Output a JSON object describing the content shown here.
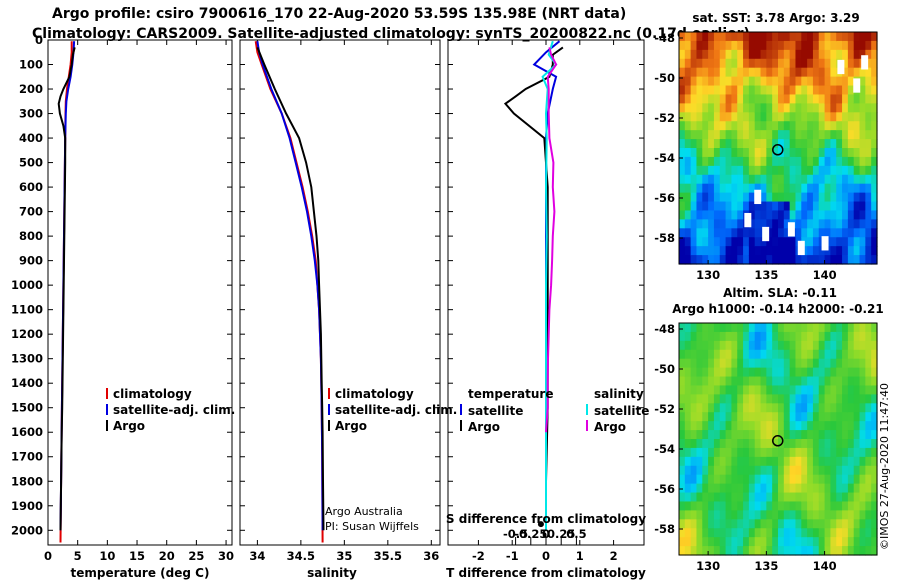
{
  "title": {
    "line1": "Argo profile: csiro 7900616_170 22-Aug-2020 53.59S 135.98E (NRT data)",
    "line2": "Climatology: CARS2009. Satellite-adjusted climatology: synTS_20200822.nc (0.17d earlier)"
  },
  "colors": {
    "climatology": "#e00000",
    "satellite": "#0000e0",
    "argo": "#000000",
    "salinity_satellite": "#00e8e8",
    "salinity_argo": "#e000e0"
  },
  "chart_data": [
    {
      "type": "line",
      "id": "temperature",
      "xlabel": "temperature (deg C)",
      "ylabel": "",
      "xlim": [
        0,
        31
      ],
      "ylim": [
        2060,
        0
      ],
      "xticks": [
        "0",
        "5",
        "10",
        "15",
        "20",
        "25",
        "30"
      ],
      "xtick_values": [
        0,
        5,
        10,
        15,
        20,
        25,
        30
      ],
      "yticks": [
        "0",
        "100",
        "200",
        "300",
        "400",
        "500",
        "600",
        "700",
        "800",
        "900",
        "1000",
        "1100",
        "1200",
        "1300",
        "1400",
        "1500",
        "1600",
        "1700",
        "1800",
        "1900",
        "2000"
      ],
      "ytick_values": [
        0,
        100,
        200,
        300,
        400,
        500,
        600,
        700,
        800,
        900,
        1000,
        1100,
        1200,
        1300,
        1400,
        1500,
        1600,
        1700,
        1800,
        1900,
        2000
      ],
      "legend": [
        "climatology",
        "satellite-adj. clim.",
        "Argo"
      ],
      "legend_position": "lower-right",
      "series": [
        {
          "name": "climatology",
          "color": "#e00000",
          "depth": [
            5,
            50,
            100,
            150,
            200,
            250,
            300,
            400,
            600,
            800,
            1000,
            1200,
            1500,
            1800,
            2050
          ],
          "values": [
            4.0,
            4.0,
            3.8,
            3.5,
            3.2,
            3.0,
            2.95,
            2.9,
            2.8,
            2.7,
            2.6,
            2.5,
            2.35,
            2.2,
            2.1
          ]
        },
        {
          "name": "satellite-adj. clim.",
          "color": "#0000e0",
          "depth": [
            5,
            50,
            100,
            150,
            200,
            250,
            300,
            400,
            600,
            800,
            1000,
            1200,
            1500,
            1800,
            2000
          ],
          "values": [
            4.4,
            4.3,
            4.1,
            3.8,
            3.4,
            3.1,
            3.0,
            2.9,
            2.8,
            2.7,
            2.6,
            2.5,
            2.35,
            2.2,
            2.1
          ]
        },
        {
          "name": "Argo",
          "color": "#000000",
          "depth": [
            30,
            60,
            100,
            150,
            200,
            230,
            260,
            300,
            350,
            400,
            500,
            600,
            700,
            800,
            900,
            1000,
            1100,
            1200,
            1300,
            1400,
            1500,
            1600,
            1700,
            1800,
            1900,
            2000
          ],
          "values": [
            4.5,
            4.2,
            4.0,
            3.6,
            2.6,
            2.1,
            1.8,
            2.0,
            2.6,
            2.9,
            2.9,
            2.85,
            2.8,
            2.75,
            2.7,
            2.65,
            2.6,
            2.55,
            2.5,
            2.45,
            2.4,
            2.3,
            2.25,
            2.2,
            2.15,
            2.1
          ]
        }
      ]
    },
    {
      "type": "line",
      "id": "salinity",
      "xlabel": "salinity",
      "xlim": [
        33.8,
        36.1
      ],
      "ylim": [
        2060,
        0
      ],
      "xticks": [
        "34",
        "34.5",
        "35",
        "35.5",
        "36"
      ],
      "xtick_values": [
        34,
        34.5,
        35,
        35.5,
        36
      ],
      "legend": [
        "climatology",
        "satellite-adj. clim.",
        "Argo"
      ],
      "legend_position": "lower-right",
      "annotations": [
        "Argo Australia",
        "PI: Susan Wijffels"
      ],
      "series": [
        {
          "name": "climatology",
          "color": "#e00000",
          "depth": [
            5,
            50,
            100,
            200,
            300,
            400,
            500,
            600,
            700,
            800,
            900,
            1000,
            1100,
            1200,
            1300,
            1400,
            1500,
            1700,
            2050
          ],
          "values": [
            33.98,
            34.0,
            34.05,
            34.15,
            34.28,
            34.38,
            34.45,
            34.52,
            34.58,
            34.63,
            34.67,
            34.69,
            34.71,
            34.72,
            34.73,
            34.735,
            34.74,
            34.745,
            34.75
          ]
        },
        {
          "name": "satellite-adj. clim.",
          "color": "#0000e0",
          "depth": [
            5,
            50,
            100,
            200,
            300,
            400,
            500,
            600,
            700,
            800,
            900,
            1000,
            1100,
            1200,
            1300,
            1400,
            1500,
            1700,
            2000
          ],
          "values": [
            34.0,
            34.02,
            34.06,
            34.16,
            34.28,
            34.37,
            34.44,
            34.51,
            34.57,
            34.62,
            34.66,
            34.69,
            34.71,
            34.72,
            34.73,
            34.735,
            34.74,
            34.745,
            34.75
          ]
        },
        {
          "name": "Argo",
          "color": "#000000",
          "depth": [
            30,
            100,
            200,
            300,
            400,
            500,
            600,
            700,
            800,
            900,
            1000,
            1100,
            1200,
            1300,
            1400,
            1500,
            1600,
            1800,
            2000
          ],
          "values": [
            34.0,
            34.08,
            34.2,
            34.33,
            34.48,
            34.56,
            34.62,
            34.65,
            34.68,
            34.7,
            34.71,
            34.72,
            34.73,
            34.735,
            34.74,
            34.745,
            34.75,
            34.755,
            34.76
          ]
        }
      ]
    },
    {
      "type": "line",
      "id": "difference",
      "xlabel": "T difference from climatology",
      "xlabel2": "S difference from climatology",
      "xlim": [
        -2.9,
        2.9
      ],
      "ylim": [
        2060,
        0
      ],
      "xticks": [
        "-2",
        "-1",
        "0",
        "1",
        "2"
      ],
      "xtick_values": [
        -2,
        -1,
        0,
        1,
        2
      ],
      "xticks2": [
        "-0.5",
        "-0.25",
        "0",
        "0.25",
        "0.5"
      ],
      "xtick2_values": [
        -0.5,
        -0.25,
        0,
        0.25,
        0.5
      ],
      "legend_groups": [
        {
          "heading": "temperature",
          "items": [
            "satellite",
            "Argo"
          ]
        },
        {
          "heading": "salinity",
          "items": [
            "satellite",
            "Argo"
          ]
        }
      ],
      "series": [
        {
          "name": "temperature satellite",
          "color": "#0000e0",
          "depth": [
            5,
            50,
            100,
            150,
            200,
            300,
            400,
            600,
            800,
            1000,
            1200,
            1500,
            1800,
            2000
          ],
          "values": [
            0.4,
            0.0,
            -0.35,
            0.3,
            0.2,
            0.05,
            0.0,
            0.0,
            0.0,
            0.0,
            0.0,
            0.0,
            0.0,
            0.0
          ]
        },
        {
          "name": "temperature Argo",
          "color": "#000000",
          "depth": [
            30,
            60,
            100,
            150,
            200,
            230,
            260,
            300,
            400,
            600,
            800,
            1000,
            1200,
            1500,
            1800,
            2000
          ],
          "values": [
            0.5,
            0.2,
            0.2,
            0.1,
            -0.6,
            -0.9,
            -1.2,
            -0.95,
            -0.05,
            0.05,
            0.05,
            0.05,
            0.05,
            0.05,
            0.0,
            0.0
          ]
        },
        {
          "name": "salinity satellite",
          "color": "#00e8e8",
          "depth": [
            5,
            60,
            100,
            150,
            200,
            300,
            400,
            600,
            800,
            1000,
            1200,
            1500,
            1800,
            2000
          ],
          "values": [
            0.2,
            0.08,
            0.3,
            -0.1,
            0.05,
            0.0,
            0.02,
            0.0,
            0.02,
            0.0,
            0.0,
            0.0,
            0.0,
            0.0
          ]
        },
        {
          "name": "salinity Argo",
          "color": "#e000e0",
          "depth": [
            30,
            60,
            100,
            150,
            200,
            300,
            400,
            500,
            600,
            700,
            800,
            900,
            1000,
            1100,
            1200,
            1300,
            1400,
            1500,
            1600
          ],
          "values": [
            0.1,
            0.15,
            0.3,
            0.05,
            0.08,
            0.08,
            0.1,
            0.22,
            0.2,
            0.25,
            0.2,
            0.18,
            0.15,
            0.1,
            0.08,
            0.06,
            0.05,
            0.05,
            0.0
          ]
        }
      ]
    },
    {
      "type": "heatmap",
      "id": "sst_map",
      "title": "sat. SST: 3.78  Argo: 3.29",
      "xticks": [
        "130",
        "135",
        "140"
      ],
      "xtick_values": [
        130,
        135,
        140
      ],
      "yticks": [
        "-48",
        "-50",
        "-52",
        "-54",
        "-56",
        "-58"
      ],
      "ytick_values": [
        -48,
        -50,
        -52,
        -54,
        -56,
        -58
      ],
      "xlim": [
        127.5,
        144.5
      ],
      "ylim": [
        -59.3,
        -47.7
      ],
      "marker": {
        "lon": 135.98,
        "lat": -53.59
      }
    },
    {
      "type": "heatmap",
      "id": "sla_map",
      "title": "Altim. SLA: -0.11",
      "subtitle": "Argo h1000: -0.14 h2000: -0.21",
      "xticks": [
        "130",
        "135",
        "140"
      ],
      "xtick_values": [
        130,
        135,
        140
      ],
      "yticks": [
        "-48",
        "-50",
        "-52",
        "-54",
        "-56",
        "-58"
      ],
      "ytick_values": [
        -48,
        -50,
        -52,
        -54,
        -56,
        -58
      ],
      "xlim": [
        127.5,
        144.5
      ],
      "ylim": [
        -59.3,
        -47.7
      ],
      "marker": {
        "lon": 135.98,
        "lat": -53.59
      },
      "watermark": "©IMOS 27-Aug-2020 11:47:40"
    }
  ]
}
